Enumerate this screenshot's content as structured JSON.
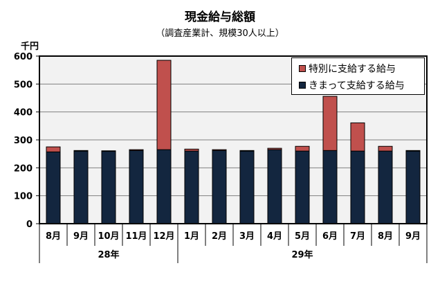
{
  "chart_data": {
    "type": "bar",
    "stacked": true,
    "title": "現金給与総額",
    "subtitle": "（調査産業計、規模30人以上）",
    "ylabel": "千円",
    "ylim": [
      0,
      600
    ],
    "yticks": [
      0,
      100,
      200,
      300,
      400,
      500,
      600
    ],
    "grid": true,
    "legend_position": "top-right",
    "categories": [
      "8月",
      "9月",
      "10月",
      "11月",
      "12月",
      "1月",
      "2月",
      "3月",
      "4月",
      "5月",
      "6月",
      "7月",
      "8月",
      "9月"
    ],
    "year_groups": [
      {
        "label": "28年",
        "count": 5
      },
      {
        "label": "29年",
        "count": 9
      }
    ],
    "series": [
      {
        "name": "きまって支給する給与",
        "color": "#13263f",
        "values": [
          257,
          260,
          259,
          262,
          265,
          260,
          262,
          260,
          265,
          260,
          262,
          260,
          260,
          260
        ]
      },
      {
        "name": "特別に支給する給与",
        "color": "#c0504d",
        "values": [
          18,
          2,
          2,
          3,
          320,
          7,
          3,
          2,
          5,
          17,
          194,
          101,
          17,
          2
        ]
      }
    ]
  }
}
